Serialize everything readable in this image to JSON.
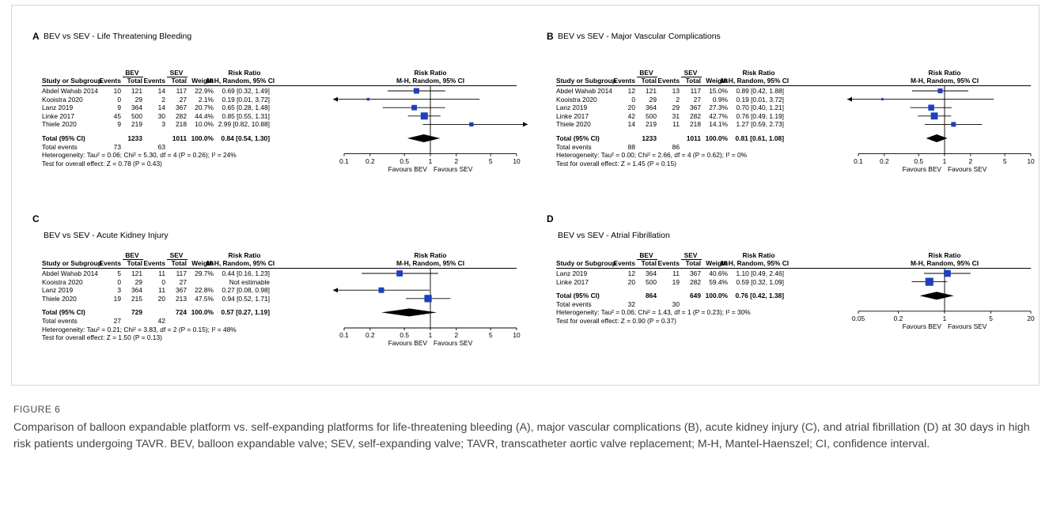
{
  "columns": {
    "study": "Study or Subgroup",
    "group1": "BEV",
    "group2": "SEV",
    "events": "Events",
    "total": "Total",
    "weight": "Weight",
    "rr_head": "Risk Ratio",
    "rr_sub": "M-H, Random, 95% CI"
  },
  "panels": [
    {
      "letter": "A",
      "title": "BEV vs SEV - Life Threatening Bleeding",
      "rows": [
        {
          "study": "Abdel Wahab 2014",
          "e1": "10",
          "t1": "121",
          "e2": "14",
          "t2": "117",
          "weight": "22.9%",
          "ci": "0.69 [0.32, 1.49]"
        },
        {
          "study": "Kooistra 2020",
          "e1": "0",
          "t1": "29",
          "e2": "2",
          "t2": "27",
          "weight": "2.1%",
          "ci": "0.19 [0.01, 3.72]"
        },
        {
          "study": "Lanz 2019",
          "e1": "9",
          "t1": "364",
          "e2": "14",
          "t2": "367",
          "weight": "20.7%",
          "ci": "0.65 [0.28, 1.48]"
        },
        {
          "study": "Linke 2017",
          "e1": "45",
          "t1": "500",
          "e2": "30",
          "t2": "282",
          "weight": "44.4%",
          "ci": "0.85 [0.55, 1.31]"
        },
        {
          "study": "Thiele 2020",
          "e1": "9",
          "t1": "219",
          "e2": "3",
          "t2": "218",
          "weight": "10.0%",
          "ci": "2.99 [0.82, 10.88]"
        }
      ],
      "total": {
        "label": "Total (95% CI)",
        "t1": "1233",
        "t2": "1011",
        "weight": "100.0%",
        "ci": "0.84 [0.54, 1.30]"
      },
      "events": {
        "label": "Total events",
        "e1": "73",
        "e2": "63"
      },
      "heterogeneity": "Heterogeneity: Tau² = 0.06; Chi² = 5.30, df = 4 (P = 0.26); I² = 24%",
      "overall": "Test for overall effect: Z = 0.78 (P = 0.43)",
      "ticks": [
        "0.1",
        "0.2",
        "0.5",
        "1",
        "2",
        "5",
        "10"
      ],
      "favours_left": "Favours BEV",
      "favours_right": "Favours SEV"
    },
    {
      "letter": "B",
      "title": "BEV vs SEV - Major Vascular Complications",
      "rows": [
        {
          "study": "Abdel Wahab 2014",
          "e1": "12",
          "t1": "121",
          "e2": "13",
          "t2": "117",
          "weight": "15.0%",
          "ci": "0.89 [0.42, 1.88]"
        },
        {
          "study": "Kooistra 2020",
          "e1": "0",
          "t1": "29",
          "e2": "2",
          "t2": "27",
          "weight": "0.9%",
          "ci": "0.19 [0.01, 3.72]"
        },
        {
          "study": "Lanz 2019",
          "e1": "20",
          "t1": "364",
          "e2": "29",
          "t2": "367",
          "weight": "27.3%",
          "ci": "0.70 [0.40, 1.21]"
        },
        {
          "study": "Linke 2017",
          "e1": "42",
          "t1": "500",
          "e2": "31",
          "t2": "282",
          "weight": "42.7%",
          "ci": "0.76 [0.49, 1.19]"
        },
        {
          "study": "Thiele 2020",
          "e1": "14",
          "t1": "219",
          "e2": "11",
          "t2": "218",
          "weight": "14.1%",
          "ci": "1.27 [0.59, 2.73]"
        }
      ],
      "total": {
        "label": "Total (95% CI)",
        "t1": "1233",
        "t2": "1011",
        "weight": "100.0%",
        "ci": "0.81 [0.61, 1.08]"
      },
      "events": {
        "label": "Total events",
        "e1": "88",
        "e2": "86"
      },
      "heterogeneity": "Heterogeneity: Tau² = 0.00; Chi² = 2.66, df = 4 (P = 0.62); I² = 0%",
      "overall": "Test for overall effect: Z = 1.45 (P = 0.15)",
      "ticks": [
        "0.1",
        "0.2",
        "0.5",
        "1",
        "2",
        "5",
        "10"
      ],
      "favours_left": "Favours BEV",
      "favours_right": "Favours SEV"
    },
    {
      "letter": "C",
      "title": "BEV vs SEV - Acute Kidney Injury",
      "rows": [
        {
          "study": "Abdel Wahab 2014",
          "e1": "5",
          "t1": "121",
          "e2": "11",
          "t2": "117",
          "weight": "29.7%",
          "ci": "0.44 [0.16, 1.23]"
        },
        {
          "study": "Kooistra 2020",
          "e1": "0",
          "t1": "29",
          "e2": "0",
          "t2": "27",
          "weight": "",
          "ci": "Not estimable"
        },
        {
          "study": "Lanz 2019",
          "e1": "3",
          "t1": "364",
          "e2": "11",
          "t2": "367",
          "weight": "22.8%",
          "ci": "0.27 [0.08, 0.98]"
        },
        {
          "study": "Thiele 2020",
          "e1": "19",
          "t1": "215",
          "e2": "20",
          "t2": "213",
          "weight": "47.5%",
          "ci": "0.94 [0.52, 1.71]"
        }
      ],
      "total": {
        "label": "Total (95% CI)",
        "t1": "729",
        "t2": "724",
        "weight": "100.0%",
        "ci": "0.57 [0.27, 1.19]"
      },
      "events": {
        "label": "Total events",
        "e1": "27",
        "e2": "42"
      },
      "heterogeneity": "Heterogeneity: Tau² = 0.21; Chi² = 3.83, df = 2 (P = 0.15); I² = 48%",
      "overall": "Test for overall effect: Z = 1.50 (P = 0.13)",
      "ticks": [
        "0.1",
        "0.2",
        "0.5",
        "1",
        "2",
        "5",
        "10"
      ],
      "favours_left": "Favours BEV",
      "favours_right": "Favours SEV"
    },
    {
      "letter": "D",
      "title": "BEV vs SEV - Atrial Fibrillation",
      "rows": [
        {
          "study": "Lanz 2019",
          "e1": "12",
          "t1": "364",
          "e2": "11",
          "t2": "367",
          "weight": "40.6%",
          "ci": "1.10 [0.49, 2.46]"
        },
        {
          "study": "Linke 2017",
          "e1": "20",
          "t1": "500",
          "e2": "19",
          "t2": "282",
          "weight": "59.4%",
          "ci": "0.59 [0.32, 1.09]"
        }
      ],
      "total": {
        "label": "Total (95% CI)",
        "t1": "864",
        "t2": "649",
        "weight": "100.0%",
        "ci": "0.76 [0.42, 1.38]"
      },
      "events": {
        "label": "Total events",
        "e1": "32",
        "e2": "30"
      },
      "heterogeneity": "Heterogeneity: Tau² = 0.06; Chi² = 1.43, df = 1 (P = 0.23); I² = 30%",
      "overall": "Test for overall effect: Z = 0.90 (P = 0.37)",
      "ticks": [
        "0.05",
        "0.2",
        "1",
        "5",
        "20"
      ],
      "favours_left": "Favours BEV",
      "favours_right": "Favours SEV"
    }
  ],
  "chart_data": [
    {
      "type": "forest",
      "panel": "A",
      "scale": "log",
      "xlim": [
        0.1,
        10
      ],
      "null_line": 1,
      "points": [
        {
          "study": "Abdel Wahab 2014",
          "rr": 0.69,
          "lo": 0.32,
          "hi": 1.49,
          "weight": 22.9
        },
        {
          "study": "Kooistra 2020",
          "rr": 0.19,
          "lo": 0.01,
          "hi": 3.72,
          "weight": 2.1
        },
        {
          "study": "Lanz 2019",
          "rr": 0.65,
          "lo": 0.28,
          "hi": 1.48,
          "weight": 20.7
        },
        {
          "study": "Linke 2017",
          "rr": 0.85,
          "lo": 0.55,
          "hi": 1.31,
          "weight": 44.4
        },
        {
          "study": "Thiele 2020",
          "rr": 2.99,
          "lo": 0.82,
          "hi": 10.88,
          "weight": 10.0
        }
      ],
      "pooled": {
        "rr": 0.84,
        "lo": 0.54,
        "hi": 1.3
      }
    },
    {
      "type": "forest",
      "panel": "B",
      "scale": "log",
      "xlim": [
        0.1,
        10
      ],
      "null_line": 1,
      "points": [
        {
          "study": "Abdel Wahab 2014",
          "rr": 0.89,
          "lo": 0.42,
          "hi": 1.88,
          "weight": 15.0
        },
        {
          "study": "Kooistra 2020",
          "rr": 0.19,
          "lo": 0.01,
          "hi": 3.72,
          "weight": 0.9
        },
        {
          "study": "Lanz 2019",
          "rr": 0.7,
          "lo": 0.4,
          "hi": 1.21,
          "weight": 27.3
        },
        {
          "study": "Linke 2017",
          "rr": 0.76,
          "lo": 0.49,
          "hi": 1.19,
          "weight": 42.7
        },
        {
          "study": "Thiele 2020",
          "rr": 1.27,
          "lo": 0.59,
          "hi": 2.73,
          "weight": 14.1
        }
      ],
      "pooled": {
        "rr": 0.81,
        "lo": 0.61,
        "hi": 1.08
      }
    },
    {
      "type": "forest",
      "panel": "C",
      "scale": "log",
      "xlim": [
        0.1,
        10
      ],
      "null_line": 1,
      "points": [
        {
          "study": "Abdel Wahab 2014",
          "rr": 0.44,
          "lo": 0.16,
          "hi": 1.23,
          "weight": 29.7
        },
        {
          "study": "Kooistra 2020",
          "rr": null,
          "lo": null,
          "hi": null,
          "weight": null
        },
        {
          "study": "Lanz 2019",
          "rr": 0.27,
          "lo": 0.08,
          "hi": 0.98,
          "weight": 22.8
        },
        {
          "study": "Thiele 2020",
          "rr": 0.94,
          "lo": 0.52,
          "hi": 1.71,
          "weight": 47.5
        }
      ],
      "pooled": {
        "rr": 0.57,
        "lo": 0.27,
        "hi": 1.19
      }
    },
    {
      "type": "forest",
      "panel": "D",
      "scale": "log",
      "xlim": [
        0.05,
        20
      ],
      "null_line": 1,
      "points": [
        {
          "study": "Lanz 2019",
          "rr": 1.1,
          "lo": 0.49,
          "hi": 2.46,
          "weight": 40.6
        },
        {
          "study": "Linke 2017",
          "rr": 0.59,
          "lo": 0.32,
          "hi": 1.09,
          "weight": 59.4
        }
      ],
      "pooled": {
        "rr": 0.76,
        "lo": 0.42,
        "hi": 1.38
      }
    }
  ],
  "colors": {
    "marker": "#1f3fbf",
    "diamond": "#000000",
    "caption": "#444444"
  },
  "caption": {
    "label": "FIGURE 6",
    "text": "Comparison of balloon expandable platform vs. self-expanding platforms for life-threatening bleeding (A), major vascular complications (B), acute kidney injury (C), and atrial fibrillation (D) at 30 days in high risk patients undergoing TAVR. BEV, balloon expandable valve; SEV, self-expanding valve; TAVR, transcatheter aortic valve replacement; M-H, Mantel-Haenszel; CI, confidence interval."
  }
}
